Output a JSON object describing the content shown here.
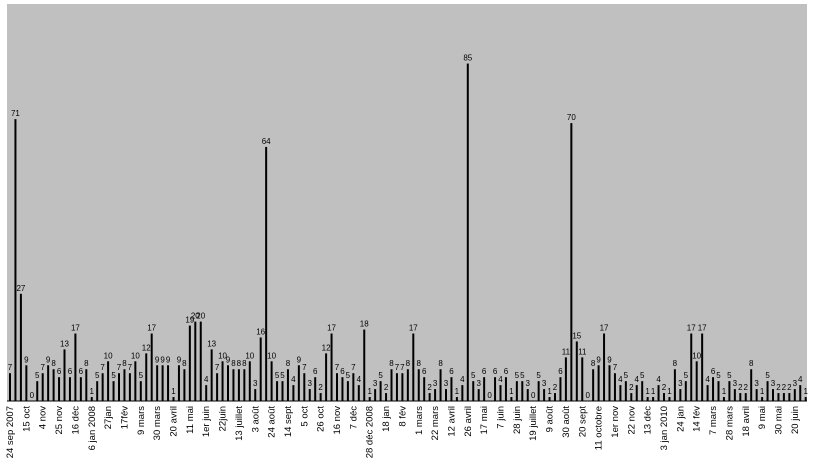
{
  "chart_data": {
    "type": "bar",
    "title": "",
    "xlabel": "",
    "ylabel": "",
    "ylim": [
      0,
      100
    ],
    "grid": false,
    "legend": "none",
    "colors": {
      "plot_background": "#c0c0c0",
      "bar": "#000000",
      "text": "#000000"
    },
    "values": [
      7,
      71,
      27,
      9,
      0,
      5,
      7,
      9,
      8,
      6,
      13,
      6,
      17,
      6,
      8,
      1,
      5,
      7,
      10,
      5,
      7,
      8,
      7,
      10,
      5,
      12,
      17,
      9,
      9,
      9,
      1,
      9,
      8,
      19,
      20,
      20,
      4,
      13,
      7,
      10,
      9,
      8,
      8,
      8,
      10,
      3,
      16,
      64,
      10,
      5,
      5,
      8,
      4,
      9,
      7,
      3,
      6,
      2,
      12,
      17,
      7,
      6,
      5,
      7,
      4,
      18,
      1,
      3,
      5,
      2,
      8,
      7,
      7,
      8,
      17,
      8,
      6,
      2,
      3,
      8,
      3,
      6,
      1,
      4,
      85,
      5,
      3,
      6,
      0,
      6,
      4,
      6,
      1,
      5,
      5,
      3,
      0,
      5,
      3,
      1,
      2,
      6,
      11,
      70,
      15,
      11,
      0,
      8,
      9,
      17,
      9,
      7,
      4,
      5,
      2,
      4,
      5,
      1,
      1,
      4,
      2,
      1,
      8,
      3,
      5,
      17,
      10,
      17,
      4,
      6,
      5,
      1,
      5,
      3,
      2,
      2,
      8,
      3,
      1,
      5,
      3,
      2,
      2,
      2,
      3,
      4,
      1
    ],
    "tick_labels": [
      {
        "index": 0,
        "label": "24 sep 2007"
      },
      {
        "index": 3,
        "label": "15 oct"
      },
      {
        "index": 6,
        "label": "4 nov"
      },
      {
        "index": 9,
        "label": "25 nov"
      },
      {
        "index": 12,
        "label": "16 déc"
      },
      {
        "index": 15,
        "label": "6 jan 2008"
      },
      {
        "index": 18,
        "label": "27jan"
      },
      {
        "index": 21,
        "label": "17fév"
      },
      {
        "index": 24,
        "label": "9 mars"
      },
      {
        "index": 27,
        "label": "30 mars"
      },
      {
        "index": 30,
        "label": "20 avril"
      },
      {
        "index": 33,
        "label": "11 mai"
      },
      {
        "index": 36,
        "label": "1er juin"
      },
      {
        "index": 39,
        "label": "22juin"
      },
      {
        "index": 42,
        "label": "13 juillet"
      },
      {
        "index": 45,
        "label": "3 août"
      },
      {
        "index": 48,
        "label": "24 août"
      },
      {
        "index": 51,
        "label": "14 sept"
      },
      {
        "index": 54,
        "label": "5 oct"
      },
      {
        "index": 57,
        "label": "26 oct"
      },
      {
        "index": 60,
        "label": "16 nov"
      },
      {
        "index": 63,
        "label": "7 déc"
      },
      {
        "index": 66,
        "label": "28 déc 2008"
      },
      {
        "index": 69,
        "label": "18 jan"
      },
      {
        "index": 72,
        "label": "8 fév"
      },
      {
        "index": 75,
        "label": "1 mars"
      },
      {
        "index": 78,
        "label": "22 mars"
      },
      {
        "index": 81,
        "label": "12 avril"
      },
      {
        "index": 84,
        "label": "26 avril"
      },
      {
        "index": 87,
        "label": "17 mai"
      },
      {
        "index": 90,
        "label": "7 juin"
      },
      {
        "index": 93,
        "label": "28 juin"
      },
      {
        "index": 96,
        "label": "19 juillet"
      },
      {
        "index": 99,
        "label": "9 août"
      },
      {
        "index": 102,
        "label": "30 août"
      },
      {
        "index": 105,
        "label": "20 sept"
      },
      {
        "index": 108,
        "label": "11 octobre"
      },
      {
        "index": 111,
        "label": "1er nov"
      },
      {
        "index": 114,
        "label": "22 nov"
      },
      {
        "index": 117,
        "label": "13 déc"
      },
      {
        "index": 120,
        "label": "3 jan 2010"
      },
      {
        "index": 123,
        "label": "24 jan"
      },
      {
        "index": 126,
        "label": "14 fév"
      },
      {
        "index": 129,
        "label": "7 mars"
      },
      {
        "index": 132,
        "label": "28 mars"
      },
      {
        "index": 135,
        "label": "18 avril"
      },
      {
        "index": 138,
        "label": "9 mai"
      },
      {
        "index": 141,
        "label": "30 mai"
      },
      {
        "index": 144,
        "label": "20 juin"
      }
    ]
  }
}
